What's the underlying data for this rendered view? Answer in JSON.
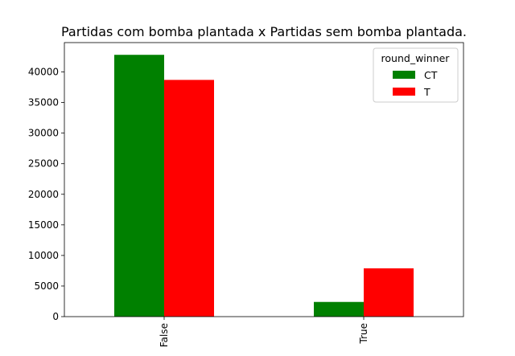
{
  "chart_data": {
    "type": "bar",
    "title": "Partidas com bomba plantada x Partidas sem bomba plantada.",
    "xlabel": "",
    "ylabel": "",
    "categories": [
      "False",
      "True"
    ],
    "series": [
      {
        "name": "CT",
        "color": "#008000",
        "values": [
          42800,
          2400
        ]
      },
      {
        "name": "T",
        "color": "#ff0000",
        "values": [
          38700,
          7900
        ]
      }
    ],
    "ylim": [
      0,
      44800
    ],
    "yticks": [
      0,
      5000,
      10000,
      15000,
      20000,
      25000,
      30000,
      35000,
      40000
    ],
    "ytick_labels": [
      "0",
      "5000",
      "10000",
      "15000",
      "20000",
      "25000",
      "30000",
      "35000",
      "40000"
    ],
    "legend": {
      "title": "round_winner",
      "placement": "top-right"
    },
    "grid": false
  }
}
